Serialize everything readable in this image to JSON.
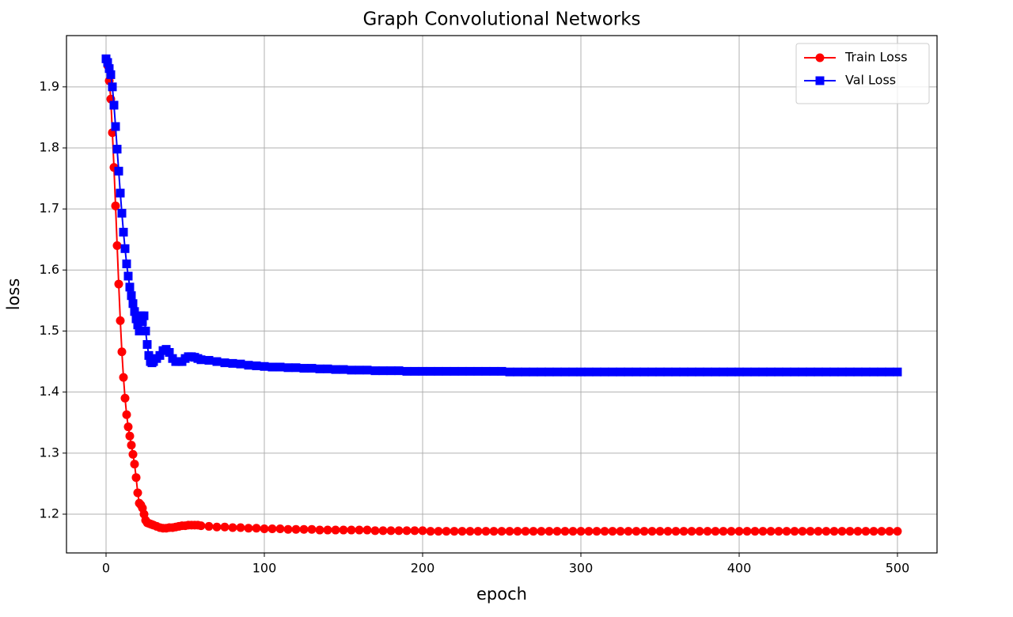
{
  "chart_data": {
    "type": "line",
    "title": "Graph Convolutional Networks",
    "x_label": "epoch",
    "y_label": "loss",
    "x": [
      0,
      1,
      2,
      3,
      4,
      5,
      6,
      7,
      8,
      9,
      10,
      11,
      12,
      13,
      14,
      15,
      16,
      17,
      18,
      19,
      20,
      21,
      22,
      23,
      24,
      25,
      26,
      27,
      28,
      29,
      30,
      32,
      34,
      36,
      38,
      40,
      42,
      44,
      46,
      48,
      50,
      52,
      54,
      56,
      58,
      60,
      65,
      70,
      75,
      80,
      85,
      90,
      95,
      100,
      105,
      110,
      115,
      120,
      125,
      130,
      135,
      140,
      145,
      150,
      155,
      160,
      165,
      170,
      175,
      180,
      185,
      190,
      195,
      200,
      205,
      210,
      215,
      220,
      225,
      230,
      235,
      240,
      245,
      250,
      255,
      260,
      265,
      270,
      275,
      280,
      285,
      290,
      295,
      300,
      305,
      310,
      315,
      320,
      325,
      330,
      335,
      340,
      345,
      350,
      355,
      360,
      365,
      370,
      375,
      380,
      385,
      390,
      395,
      400,
      405,
      410,
      415,
      420,
      425,
      430,
      435,
      440,
      445,
      450,
      455,
      460,
      465,
      470,
      475,
      480,
      485,
      490,
      495,
      500
    ],
    "series": [
      {
        "name": "Train Loss",
        "color": "#ff0000",
        "marker": "circle",
        "values": [
          1.946,
          1.935,
          1.91,
          1.88,
          1.825,
          1.768,
          1.705,
          1.64,
          1.577,
          1.517,
          1.466,
          1.424,
          1.39,
          1.363,
          1.343,
          1.328,
          1.313,
          1.298,
          1.282,
          1.26,
          1.235,
          1.218,
          1.215,
          1.21,
          1.2,
          1.19,
          1.186,
          1.185,
          1.184,
          1.183,
          1.182,
          1.18,
          1.178,
          1.177,
          1.177,
          1.178,
          1.178,
          1.179,
          1.18,
          1.181,
          1.181,
          1.182,
          1.182,
          1.182,
          1.182,
          1.181,
          1.18,
          1.179,
          1.179,
          1.178,
          1.178,
          1.177,
          1.177,
          1.176,
          1.176,
          1.176,
          1.175,
          1.175,
          1.175,
          1.175,
          1.174,
          1.174,
          1.174,
          1.174,
          1.174,
          1.174,
          1.174,
          1.173,
          1.173,
          1.173,
          1.173,
          1.173,
          1.173,
          1.173,
          1.172,
          1.172,
          1.172,
          1.172,
          1.172,
          1.172,
          1.172,
          1.172,
          1.172,
          1.172,
          1.172,
          1.172,
          1.172,
          1.172,
          1.172,
          1.172,
          1.172,
          1.172,
          1.172,
          1.172,
          1.172,
          1.172,
          1.172,
          1.172,
          1.172,
          1.172,
          1.172,
          1.172,
          1.172,
          1.172,
          1.172,
          1.172,
          1.172,
          1.172,
          1.172,
          1.172,
          1.172,
          1.172,
          1.172,
          1.172,
          1.172,
          1.172,
          1.172,
          1.172,
          1.172,
          1.172,
          1.172,
          1.172,
          1.172,
          1.172,
          1.172,
          1.172,
          1.172,
          1.172,
          1.172,
          1.172,
          1.172,
          1.172,
          1.172,
          1.172
        ]
      },
      {
        "name": "Val Loss",
        "color": "#0000ff",
        "marker": "square",
        "values": [
          1.946,
          1.94,
          1.93,
          1.92,
          1.9,
          1.87,
          1.835,
          1.798,
          1.762,
          1.726,
          1.693,
          1.662,
          1.635,
          1.61,
          1.59,
          1.572,
          1.558,
          1.545,
          1.532,
          1.52,
          1.51,
          1.5,
          1.525,
          1.515,
          1.525,
          1.5,
          1.478,
          1.46,
          1.45,
          1.448,
          1.45,
          1.455,
          1.46,
          1.468,
          1.47,
          1.465,
          1.455,
          1.45,
          1.45,
          1.45,
          1.455,
          1.458,
          1.458,
          1.457,
          1.455,
          1.453,
          1.452,
          1.45,
          1.448,
          1.447,
          1.446,
          1.444,
          1.443,
          1.442,
          1.441,
          1.441,
          1.44,
          1.44,
          1.439,
          1.439,
          1.438,
          1.438,
          1.437,
          1.437,
          1.436,
          1.436,
          1.436,
          1.435,
          1.435,
          1.435,
          1.435,
          1.434,
          1.434,
          1.434,
          1.434,
          1.434,
          1.434,
          1.434,
          1.434,
          1.434,
          1.434,
          1.434,
          1.434,
          1.434,
          1.433,
          1.433,
          1.433,
          1.433,
          1.433,
          1.433,
          1.433,
          1.433,
          1.433,
          1.433,
          1.433,
          1.433,
          1.433,
          1.433,
          1.433,
          1.433,
          1.433,
          1.433,
          1.433,
          1.433,
          1.433,
          1.433,
          1.433,
          1.433,
          1.433,
          1.433,
          1.433,
          1.433,
          1.433,
          1.433,
          1.433,
          1.433,
          1.433,
          1.433,
          1.433,
          1.433,
          1.433,
          1.433,
          1.433,
          1.433,
          1.433,
          1.433,
          1.433,
          1.433,
          1.433,
          1.433,
          1.433,
          1.433,
          1.433,
          1.433
        ]
      }
    ],
    "xlim": [
      -25,
      525
    ],
    "xticks": [
      0,
      100,
      200,
      300,
      400,
      500
    ],
    "ylim": [
      1.1365,
      1.984
    ],
    "yticks": [
      1.2,
      1.3,
      1.4,
      1.5,
      1.6,
      1.7,
      1.8,
      1.9
    ],
    "grid": true,
    "legend": "upper right"
  }
}
